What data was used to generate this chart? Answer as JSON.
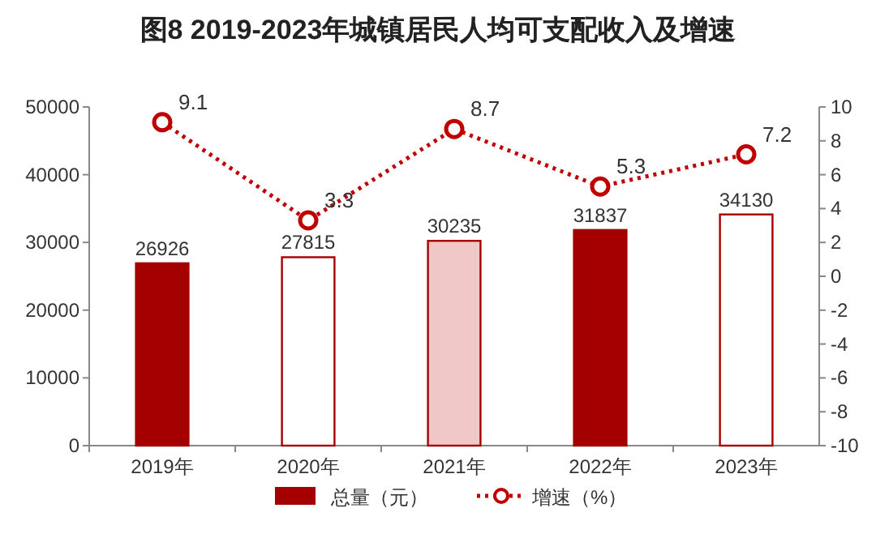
{
  "chart_data": {
    "type": "bar",
    "title": "图8 2019-2023年城镇居民人均可支配收入及增速",
    "categories": [
      "2019年",
      "2020年",
      "2021年",
      "2022年",
      "2023年"
    ],
    "series": [
      {
        "name": "总量（元）",
        "color": "#a50000",
        "colors": [
          "#a50000",
          "#ffffff",
          "#f0c8c8",
          "#a50000",
          "#ffffff"
        ],
        "values": [
          26926,
          27815,
          30235,
          31837,
          34130
        ]
      },
      {
        "name": "增速（%）",
        "type": "line",
        "axis": "y2",
        "color": "#c00000",
        "marker": "circle",
        "line_style": "dotted",
        "values": [
          9.1,
          3.3,
          8.7,
          5.3,
          7.2
        ]
      }
    ],
    "ylim": [
      0,
      50000
    ],
    "yticks": [
      0,
      10000,
      20000,
      30000,
      40000,
      50000
    ],
    "y2lim": [
      -10,
      10
    ],
    "y2ticks": [
      -10,
      -8,
      -6,
      -4,
      -2,
      0,
      2,
      4,
      6,
      8,
      10
    ],
    "data_labels": true,
    "grid": false,
    "legend": "bottom"
  }
}
